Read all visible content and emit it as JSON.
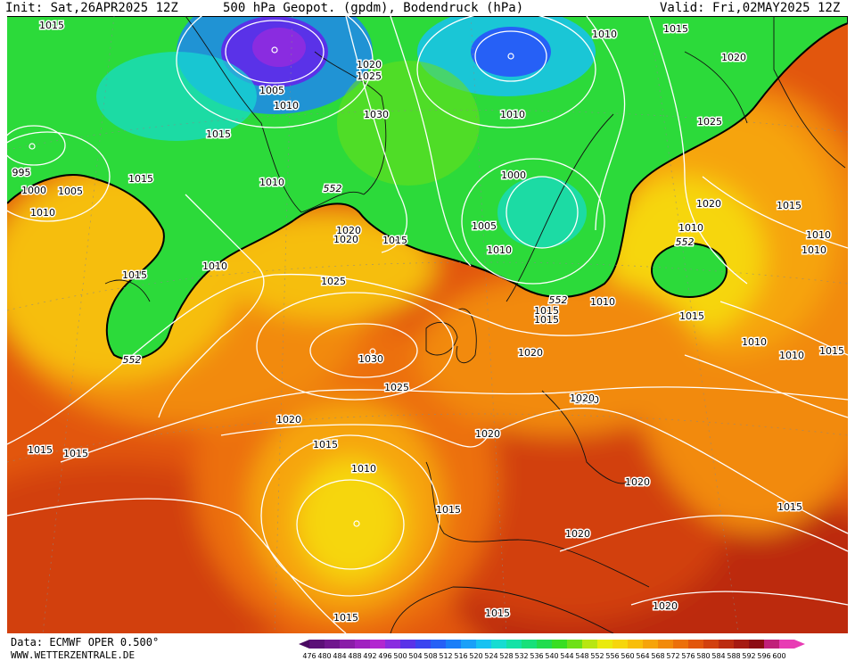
{
  "header": {
    "init": "Init: Sat,26APR2025 12Z",
    "title": "500 hPa Geopot. (gpdm), Bodendruck (hPa)",
    "valid": "Valid: Fri,02MAY2025 12Z"
  },
  "footer": {
    "data_source": "Data: ECMWF OPER 0.500°",
    "website": "WWW.WETTERZENTRALE.DE"
  },
  "legend": {
    "values": [
      "476",
      "480",
      "484",
      "488",
      "492",
      "496",
      "500",
      "504",
      "508",
      "512",
      "516",
      "520",
      "524",
      "528",
      "532",
      "536",
      "540",
      "544",
      "548",
      "552",
      "556",
      "560",
      "564",
      "568",
      "572",
      "576",
      "580",
      "584",
      "588",
      "592",
      "596",
      "600"
    ],
    "colors": [
      "#4a0a62",
      "#5c1078",
      "#70168e",
      "#8a1ca8",
      "#a020c0",
      "#b226d0",
      "#8a2ce0",
      "#5a32e8",
      "#3a44f0",
      "#2660f6",
      "#1a7ef8",
      "#1aa0f8",
      "#18c2f2",
      "#16dcd2",
      "#14e2a6",
      "#18e07a",
      "#22dc4e",
      "#38de22",
      "#6ee018",
      "#b8e612",
      "#eaea0e",
      "#f6d60c",
      "#f8be0a",
      "#f6a40a",
      "#f28a0a",
      "#ec700a",
      "#e2560c",
      "#d2400e",
      "#bc2c10",
      "#a61a12",
      "#8c0c14",
      "#c0207a",
      "#e83cb4"
    ]
  },
  "map": {
    "highs_hpa": [
      "1030",
      "1030",
      "1025",
      "1020"
    ],
    "lows_hpa": [
      "995",
      "1000",
      "1005",
      "1010"
    ],
    "isobar_labels": [
      {
        "text": "1015"
      },
      {
        "text": "1005"
      },
      {
        "text": "1010"
      },
      {
        "text": "1015"
      },
      {
        "text": "1020"
      },
      {
        "text": "1025"
      },
      {
        "text": "1030"
      },
      {
        "text": "1010"
      },
      {
        "text": "1010"
      },
      {
        "text": "1015"
      },
      {
        "text": "1020"
      },
      {
        "text": "1025"
      },
      {
        "text": "995"
      },
      {
        "text": "1000"
      },
      {
        "text": "1005"
      },
      {
        "text": "1010"
      },
      {
        "text": "1015"
      },
      {
        "text": "1010"
      },
      {
        "text": "1015"
      },
      {
        "text": "1020"
      },
      {
        "text": "1020"
      },
      {
        "text": "1015"
      },
      {
        "text": "1010"
      },
      {
        "text": "1005"
      },
      {
        "text": "1000"
      },
      {
        "text": "1010"
      },
      {
        "text": "1015"
      },
      {
        "text": "1010"
      },
      {
        "text": "1010"
      },
      {
        "text": "1025"
      },
      {
        "text": "1030"
      },
      {
        "text": "1025"
      },
      {
        "text": "1020"
      },
      {
        "text": "1020"
      },
      {
        "text": "1020"
      },
      {
        "text": "1015"
      },
      {
        "text": "1015"
      },
      {
        "text": "1010"
      },
      {
        "text": "1020"
      },
      {
        "text": "1015"
      },
      {
        "text": "1015"
      },
      {
        "text": "1020"
      },
      {
        "text": "1015"
      },
      {
        "text": "1020"
      },
      {
        "text": "1015"
      },
      {
        "text": "1010"
      },
      {
        "text": "1010"
      },
      {
        "text": "1015"
      },
      {
        "text": "1010"
      },
      {
        "text": "1020"
      },
      {
        "text": "1015"
      },
      {
        "text": "1015"
      },
      {
        "text": "1015"
      },
      {
        "text": "1010"
      },
      {
        "text": "1020"
      },
      {
        "text": "1020"
      },
      {
        "text": "1015"
      }
    ],
    "contour_552_labels": [
      {
        "text": "552"
      },
      {
        "text": "552"
      },
      {
        "text": "552"
      },
      {
        "text": "552"
      }
    ]
  }
}
